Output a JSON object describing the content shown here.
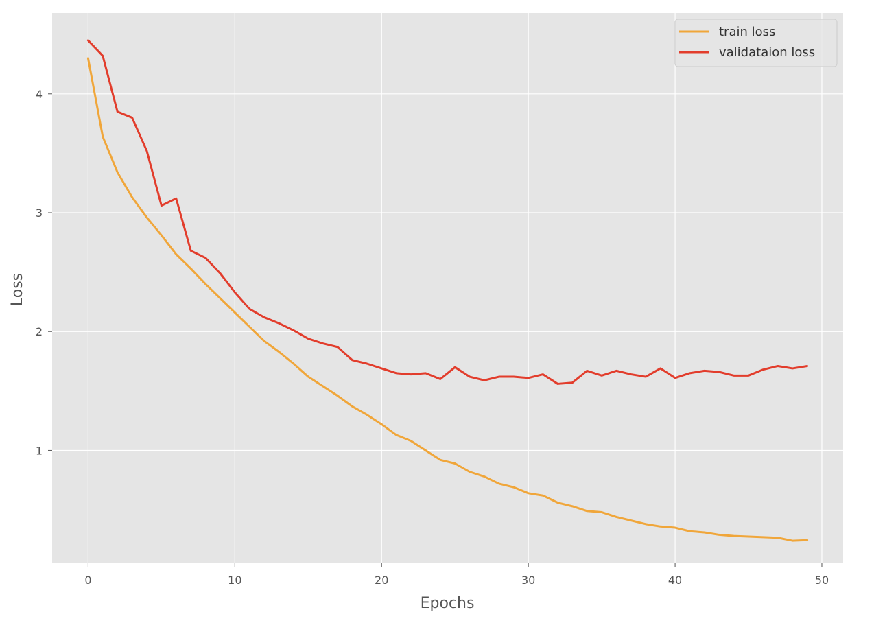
{
  "chart_data": {
    "type": "line",
    "title": "",
    "xlabel": "Epochs",
    "ylabel": "Loss",
    "xlim": [
      -2.45,
      51.45
    ],
    "ylim": [
      0.05,
      4.68
    ],
    "xticks": [
      0,
      10,
      20,
      30,
      40,
      50
    ],
    "yticks": [
      1,
      2,
      3,
      4
    ],
    "grid": true,
    "legend_position": "top-right",
    "x": [
      0,
      1,
      2,
      3,
      4,
      5,
      6,
      7,
      8,
      9,
      10,
      11,
      12,
      13,
      14,
      15,
      16,
      17,
      18,
      19,
      20,
      21,
      22,
      23,
      24,
      25,
      26,
      27,
      28,
      29,
      30,
      31,
      32,
      33,
      34,
      35,
      36,
      37,
      38,
      39,
      40,
      41,
      42,
      43,
      44,
      45,
      46,
      47,
      48,
      49
    ],
    "series": [
      {
        "name": "train loss",
        "color": "#f0a63a",
        "values": [
          4.3,
          3.64,
          3.34,
          3.13,
          2.96,
          2.81,
          2.65,
          2.53,
          2.4,
          2.28,
          2.16,
          2.04,
          1.92,
          1.83,
          1.73,
          1.62,
          1.54,
          1.46,
          1.37,
          1.3,
          1.22,
          1.13,
          1.08,
          1.0,
          0.92,
          0.89,
          0.82,
          0.78,
          0.72,
          0.69,
          0.64,
          0.62,
          0.56,
          0.53,
          0.49,
          0.48,
          0.44,
          0.41,
          0.38,
          0.36,
          0.35,
          0.32,
          0.31,
          0.29,
          0.28,
          0.275,
          0.27,
          0.265,
          0.24,
          0.245
        ]
      },
      {
        "name": "validataion loss",
        "color": "#e23d2c",
        "values": [
          4.45,
          4.32,
          3.85,
          3.8,
          3.52,
          3.06,
          3.12,
          2.68,
          2.62,
          2.49,
          2.33,
          2.19,
          2.12,
          2.07,
          2.01,
          1.94,
          1.9,
          1.87,
          1.76,
          1.73,
          1.69,
          1.65,
          1.64,
          1.65,
          1.6,
          1.7,
          1.62,
          1.59,
          1.62,
          1.62,
          1.61,
          1.64,
          1.56,
          1.57,
          1.67,
          1.63,
          1.67,
          1.64,
          1.62,
          1.69,
          1.61,
          1.65,
          1.67,
          1.66,
          1.63,
          1.63,
          1.68,
          1.71,
          1.69,
          1.71
        ]
      }
    ]
  },
  "colors": {
    "plot_background": "#e5e5e5",
    "grid": "#ffffff",
    "legend_border": "#cccccc"
  }
}
